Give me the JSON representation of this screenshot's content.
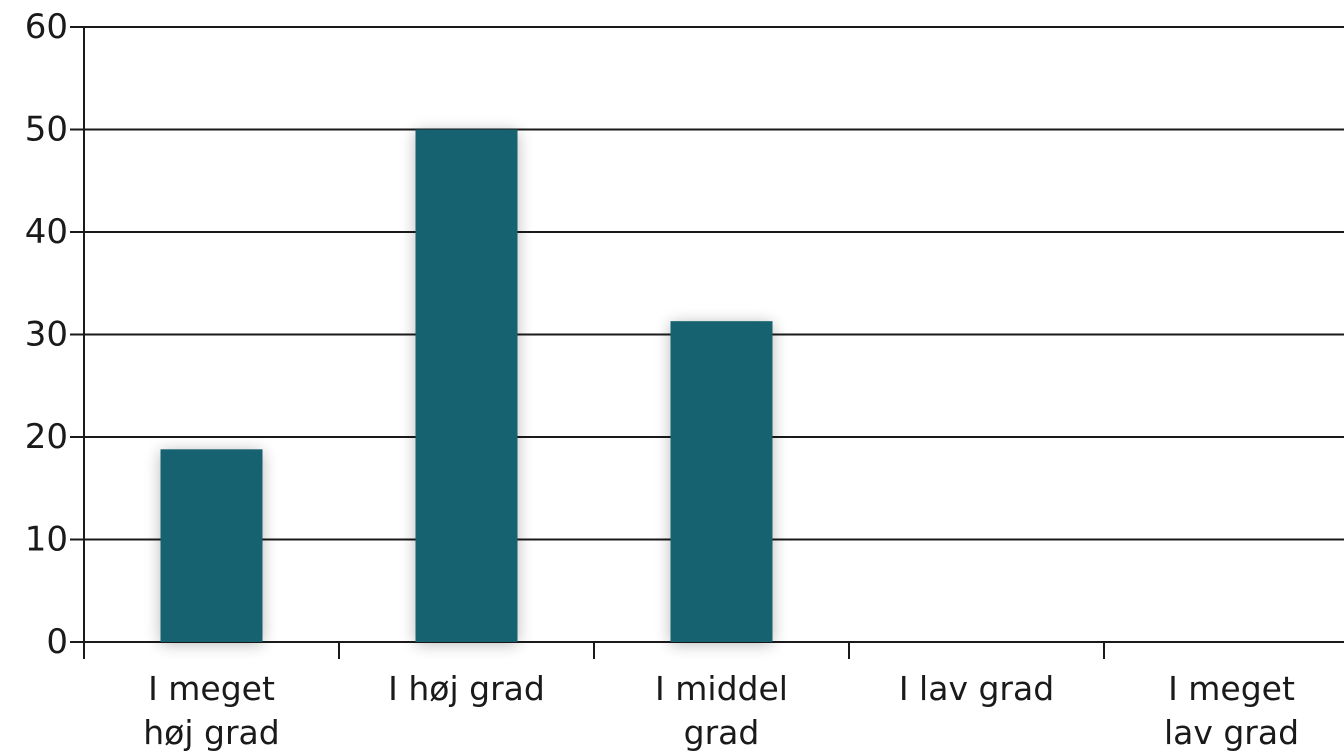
{
  "chart_data": {
    "type": "bar",
    "categories": [
      "I meget høj grad",
      "I høj grad",
      "I middel grad",
      "I lav grad",
      "I meget lav grad"
    ],
    "category_label_lines": [
      [
        "I meget",
        "høj grad"
      ],
      [
        "I høj grad"
      ],
      [
        "I middel",
        "grad"
      ],
      [
        "I lav grad"
      ],
      [
        "I meget",
        "lav grad"
      ]
    ],
    "values": [
      18.8,
      50,
      31.3,
      0,
      0
    ],
    "ylim": [
      0,
      60
    ],
    "yticks": [
      "0",
      "10",
      "20",
      "30",
      "40",
      "50",
      "60"
    ],
    "grid": true,
    "bar_color": "#13626f",
    "title": "",
    "xlabel": "",
    "ylabel": ""
  }
}
